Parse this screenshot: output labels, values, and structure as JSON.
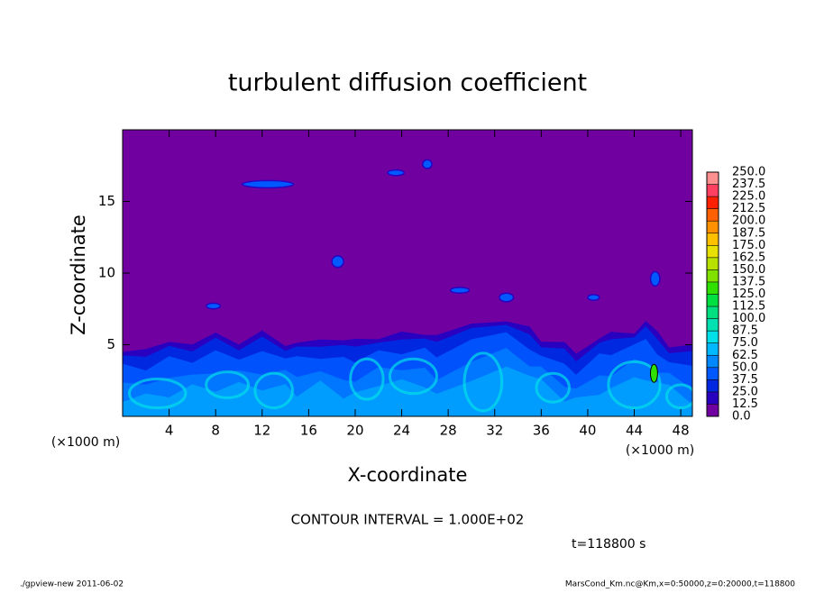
{
  "chart_data": {
    "type": "contour",
    "title": "turbulent diffusion coefficient",
    "x_label": "X-coordinate",
    "y_label": "Z-coordinate",
    "x_unit": "(×1000 m)",
    "xlim": [
      0,
      49
    ],
    "ylim": [
      0,
      20
    ],
    "xticks": [
      4,
      8,
      12,
      16,
      20,
      24,
      28,
      32,
      36,
      40,
      44,
      48
    ],
    "yticks": [
      5,
      10,
      15
    ],
    "annotation": "CONTOUR INTERVAL = 1.000E+02",
    "time_label": "t=118800 s",
    "footer_left": "./gpview-new   2011-06-02",
    "footer_right": "MarsCond_Km.nc@Km,x=0:50000,z=0:20000,t=118800",
    "colorbar": {
      "levels": [
        {
          "value": 0,
          "label": "0.0"
        },
        {
          "value": 12.5,
          "label": "12.5"
        },
        {
          "value": 25,
          "label": "25.0"
        },
        {
          "value": 37.5,
          "label": "37.5"
        },
        {
          "value": 50,
          "label": "50.0"
        },
        {
          "value": 62.5,
          "label": "62.5"
        },
        {
          "value": 75,
          "label": "75.0"
        },
        {
          "value": 87.5,
          "label": "87.5"
        },
        {
          "value": 100,
          "label": "100.0"
        },
        {
          "value": 112.5,
          "label": "112.5"
        },
        {
          "value": 125,
          "label": "125.0"
        },
        {
          "value": 137.5,
          "label": "137.5"
        },
        {
          "value": 150,
          "label": "150.0"
        },
        {
          "value": 162.5,
          "label": "162.5"
        },
        {
          "value": 175,
          "label": "175.0"
        },
        {
          "value": 187.5,
          "label": "187.5"
        },
        {
          "value": 200,
          "label": "200.0"
        },
        {
          "value": 212.5,
          "label": "212.5"
        },
        {
          "value": 225,
          "label": "225.0"
        },
        {
          "value": 237.5,
          "label": "237.5"
        },
        {
          "value": 250,
          "label": "250.0"
        }
      ],
      "colors": [
        "#7000a0",
        "#2a00c0",
        "#0028e0",
        "#0058ff",
        "#0088ff",
        "#00b8ff",
        "#00e0e8",
        "#00e0b0",
        "#00e080",
        "#00e040",
        "#30e000",
        "#80e000",
        "#b8e000",
        "#e8e000",
        "#ffc000",
        "#ff9000",
        "#ff6000",
        "#ff2000",
        "#ff4060",
        "#ff9090"
      ]
    }
  }
}
